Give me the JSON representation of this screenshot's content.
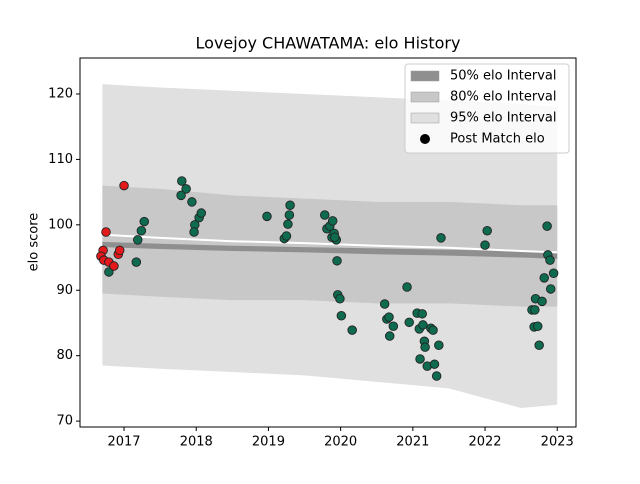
{
  "chart_data": {
    "type": "interval_scatter",
    "title": "Lovejoy CHAWATAMA: elo History",
    "y_label": "elo score",
    "xlim": [
      2016.39,
      2023.26
    ],
    "ylim": [
      69.1,
      125.5
    ],
    "xticks": [
      2017,
      2018,
      2019,
      2020,
      2021,
      2022,
      2023
    ],
    "yticks": [
      70,
      80,
      90,
      100,
      110,
      120
    ],
    "legend": "upper right",
    "x": [
      2016.7,
      2017.5,
      2018.5,
      2019.5,
      2020.5,
      2021.5,
      2022.5,
      2023.0
    ],
    "mean": {
      "color": "#ffffff",
      "values": [
        98.5,
        98.0,
        97.5,
        97.2,
        96.8,
        96.5,
        96.0,
        95.8
      ]
    },
    "intervals": [
      {
        "name": "95% elo Interval",
        "color": "#e0e0e0",
        "upper": [
          121.5,
          121,
          120.5,
          120,
          119.5,
          119,
          118.5,
          118
        ],
        "lower": [
          78.5,
          78,
          77.5,
          77,
          76,
          75,
          72,
          72.5
        ]
      },
      {
        "name": "80% elo Interval",
        "color": "#c8c8c8",
        "upper": [
          106,
          105.5,
          104.5,
          104,
          103.5,
          103.5,
          103,
          103
        ],
        "lower": [
          89.5,
          89,
          88.5,
          88.5,
          88,
          88,
          87.5,
          87.5
        ]
      },
      {
        "name": "50% elo Interval",
        "color": "#8f8f8f",
        "upper": [
          97.4,
          97.1,
          96.8,
          96.6,
          96.4,
          96.2,
          96.0,
          95.8
        ],
        "lower": [
          96.6,
          96.3,
          96.0,
          95.8,
          95.5,
          95.3,
          95.0,
          94.8
        ]
      }
    ],
    "series": [
      {
        "name": "Post Match elo",
        "color": "#0f6b4f",
        "x": [
          2016.79,
          2017.17,
          2017.19,
          2017.24,
          2017.28,
          2017.8,
          2017.86,
          2017.79,
          2017.94,
          2017.98,
          2017.97,
          2018.04,
          2018.07,
          2018.98,
          2019.22,
          2019.25,
          2019.27,
          2019.29,
          2019.3,
          2019.78,
          2019.81,
          2019.85,
          2019.88,
          2019.89,
          2019.91,
          2019.94,
          2019.92,
          2019.95,
          2019.96,
          2019.99,
          2020.01,
          2020.16,
          2020.61,
          2020.64,
          2020.67,
          2020.68,
          2020.73,
          2020.92,
          2020.95,
          2021.06,
          2021.09,
          2021.13,
          2021.14,
          2021.16,
          2021.17,
          2021.2,
          2021.1,
          2021.25,
          2021.28,
          2021.3,
          2021.33,
          2021.36,
          2021.39,
          2022.0,
          2022.03,
          2022.65,
          2022.68,
          2022.69,
          2022.7,
          2022.73,
          2022.75,
          2022.79,
          2022.82,
          2022.86,
          2022.87,
          2022.9,
          2022.91,
          2022.95
        ],
        "values": [
          92.8,
          94.3,
          97.7,
          99.1,
          100.5,
          106.7,
          105.5,
          104.5,
          103.5,
          100,
          98.9,
          101.1,
          101.8,
          101.3,
          97.9,
          98.3,
          100.1,
          101.5,
          103.0,
          101.5,
          99.4,
          99.8,
          98.1,
          100.6,
          98.7,
          97.7,
          98.1,
          94.5,
          89.3,
          88.7,
          86.1,
          83.9,
          87.9,
          85.6,
          85.9,
          83.0,
          84.5,
          90.5,
          85.1,
          86.5,
          84.1,
          86.4,
          84.7,
          82.2,
          81.3,
          78.4,
          79.5,
          84.2,
          83.9,
          78.7,
          76.9,
          81.6,
          98.0,
          96.9,
          99.1,
          87.0,
          84.4,
          87.0,
          88.7,
          84.5,
          81.6,
          88.3,
          91.9,
          99.8,
          95.4,
          94.6,
          90.2,
          92.6
        ]
      },
      {
        "color": "#e3191c",
        "x": [
          2016.71,
          2016.68,
          2016.75,
          2016.72,
          2016.79,
          2016.86,
          2016.92,
          2016.94,
          2017.0
        ],
        "values": [
          96.1,
          95.2,
          98.9,
          94.6,
          94.3,
          93.7,
          95.5,
          96.1,
          106.0
        ]
      }
    ]
  }
}
